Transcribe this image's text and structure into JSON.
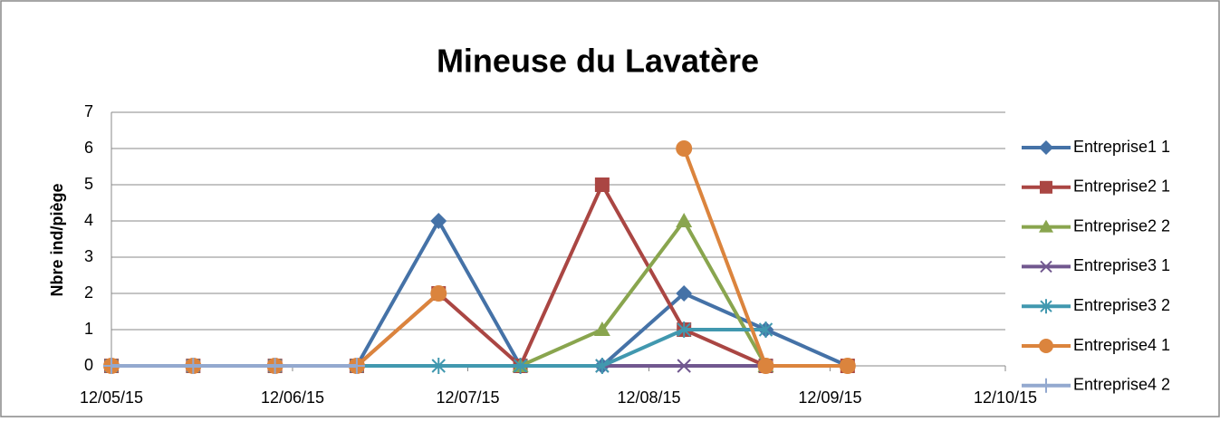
{
  "chart_data": {
    "type": "line",
    "title": "Mineuse du Lavatère",
    "y_label": "Nbre ind/piège",
    "x": [
      "2015-05-12",
      "2015-05-26",
      "2015-06-09",
      "2015-06-23",
      "2015-07-07",
      "2015-07-21",
      "2015-08-04",
      "2015-08-18",
      "2015-09-01",
      "2015-09-15"
    ],
    "xlim": [
      "2015-05-12",
      "2015-10-12"
    ],
    "xticks": [
      {
        "value": "2015-05-12",
        "label": "12/05/15"
      },
      {
        "value": "2015-06-12",
        "label": "12/06/15"
      },
      {
        "value": "2015-07-12",
        "label": "12/07/15"
      },
      {
        "value": "2015-08-12",
        "label": "12/08/15"
      },
      {
        "value": "2015-09-12",
        "label": "12/09/15"
      },
      {
        "value": "2015-10-12",
        "label": "12/10/15"
      }
    ],
    "ylim": [
      0,
      7
    ],
    "yticks": [
      0,
      1,
      2,
      3,
      4,
      5,
      6,
      7
    ],
    "grid": true,
    "legend": "right",
    "series": [
      {
        "name": "Entreprise1 1",
        "color": "#4572a7",
        "marker": "diamond",
        "values": [
          0,
          0,
          0,
          0,
          4,
          0,
          0,
          2,
          1,
          0
        ]
      },
      {
        "name": "Entreprise2 1",
        "color": "#aa4643",
        "marker": "square",
        "values": [
          0,
          0,
          0,
          0,
          2,
          0,
          5,
          1,
          0,
          0
        ]
      },
      {
        "name": "Entreprise2 2",
        "color": "#89a54e",
        "marker": "triangle",
        "values": [
          null,
          null,
          null,
          null,
          null,
          0,
          1,
          4,
          0,
          null
        ]
      },
      {
        "name": "Entreprise3 1",
        "color": "#71588f",
        "marker": "x",
        "values": [
          null,
          null,
          null,
          null,
          null,
          null,
          0,
          0,
          0,
          null
        ]
      },
      {
        "name": "Entreprise3 2",
        "color": "#4198af",
        "marker": "star",
        "values": [
          0,
          0,
          0,
          0,
          0,
          0,
          0,
          1,
          1,
          null
        ]
      },
      {
        "name": "Entreprise4 1",
        "color": "#db843d",
        "marker": "circle",
        "values": [
          0,
          0,
          0,
          0,
          2,
          null,
          null,
          6,
          0,
          0
        ]
      },
      {
        "name": "Entreprise4 2",
        "color": "#93a9cf",
        "marker": "plus",
        "values": [
          0,
          0,
          0,
          0,
          null,
          null,
          null,
          null,
          null,
          null
        ]
      }
    ]
  }
}
